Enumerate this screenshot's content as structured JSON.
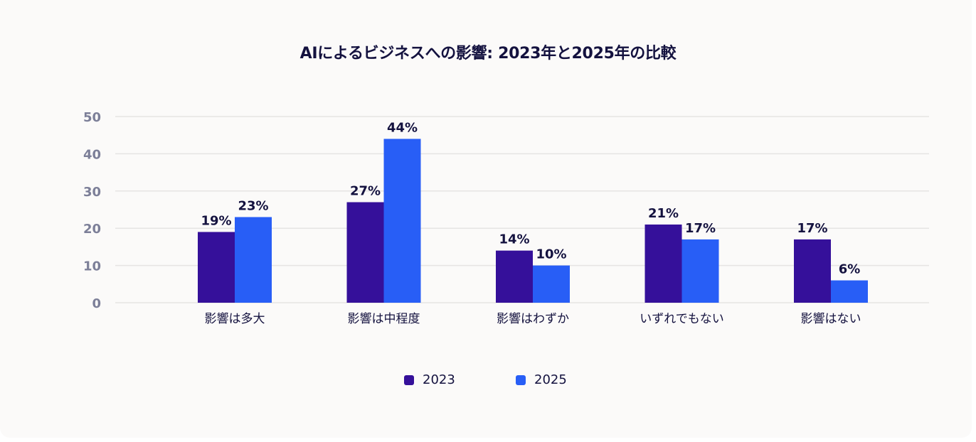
{
  "chart_data": {
    "type": "bar",
    "title": "AIによるビジネスへの影響: 2023年と2025年の比較",
    "xlabel": "",
    "ylabel": "",
    "ylim": [
      0,
      50
    ],
    "yticks": [
      0,
      10,
      20,
      30,
      40,
      50
    ],
    "grid": true,
    "legend_position": "bottom-center",
    "categories": [
      "影響は多大",
      "影響は中程度",
      "影響はわずか",
      "いずれでもない",
      "影響はない"
    ],
    "series": [
      {
        "name": "2023",
        "color": "#35109a",
        "values": [
          19,
          27,
          14,
          21,
          17
        ],
        "labels": [
          "19%",
          "27%",
          "14%",
          "21%",
          "17%"
        ]
      },
      {
        "name": "2025",
        "color": "#285ef6",
        "values": [
          23,
          44,
          10,
          17,
          6
        ],
        "labels": [
          "23%",
          "44%",
          "10%",
          "17%",
          "6%"
        ]
      }
    ]
  }
}
